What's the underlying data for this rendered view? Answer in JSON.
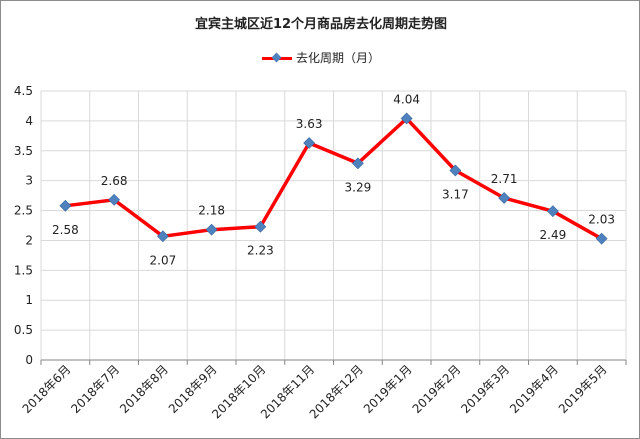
{
  "chart_data": {
    "type": "line",
    "title": "宜宾主城区近12个月商品房去化周期走势图",
    "categories": [
      "2018年6月",
      "2018年7月",
      "2018年8月",
      "2018年9月",
      "2018年10月",
      "2018年11月",
      "2018年12月",
      "2019年1月",
      "2019年2月",
      "2019年3月",
      "2019年4月",
      "2019年5月"
    ],
    "series": [
      {
        "name": "去化周期（月）",
        "values": [
          2.58,
          2.68,
          2.07,
          2.18,
          2.23,
          3.63,
          3.29,
          4.04,
          3.17,
          2.71,
          2.49,
          2.03
        ],
        "data_labels": [
          "2.58",
          "2.68",
          "2.07",
          "2.18",
          "2.23",
          "3.63",
          "3.29",
          "4.04",
          "3.17",
          "2.71",
          "2.49",
          "2.03"
        ],
        "label_positions": [
          "below",
          "above",
          "below",
          "above",
          "below",
          "above",
          "below",
          "above",
          "below",
          "above",
          "below",
          "above"
        ],
        "line_color": "#ff0000",
        "marker_color": "#4f81bd"
      }
    ],
    "ylim": [
      0,
      4.5
    ],
    "ytick_labels": [
      "0",
      "0.5",
      "1",
      "1.5",
      "2",
      "2.5",
      "3",
      "3.5",
      "4",
      "4.5"
    ],
    "grid": true,
    "legend": "top-center",
    "xlabel": "",
    "ylabel": ""
  }
}
